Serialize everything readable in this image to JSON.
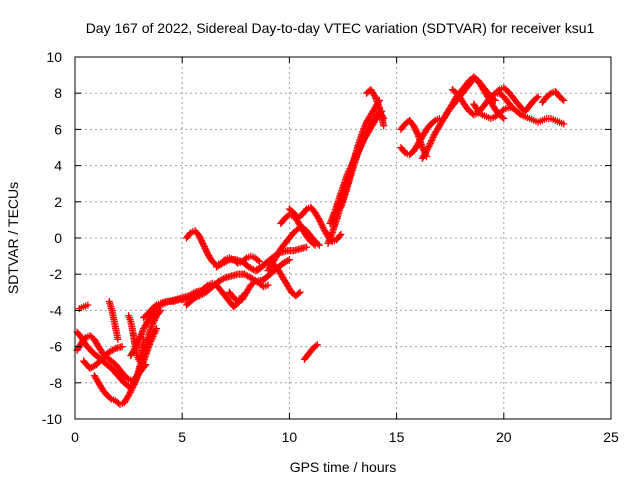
{
  "chart_data": {
    "type": "scatter",
    "title": "Day 167 of 2022, Sidereal Day-to-day VTEC variation (SDTVAR) for receiver ksu1",
    "xlabel": "GPS time / hours",
    "ylabel": "SDTVAR / TECUs",
    "xlim": [
      0,
      25
    ],
    "ylim": [
      -10,
      10
    ],
    "xticks": [
      0,
      5,
      10,
      15,
      20,
      25
    ],
    "yticks": [
      -10,
      -8,
      -6,
      -4,
      -2,
      0,
      2,
      4,
      6,
      8,
      10
    ],
    "grid": true,
    "marker": "+",
    "color": "#ff0000",
    "series": [
      {
        "name": "s1",
        "x": [
          0.2,
          0.4,
          0.6
        ],
        "y": [
          -3.9,
          -3.8,
          -3.7
        ]
      },
      {
        "name": "s2",
        "x": [
          0.1,
          0.3,
          0.5,
          0.7,
          0.9,
          1.1,
          1.3,
          1.5,
          1.7,
          1.9,
          2.1,
          2.3,
          2.5,
          2.7,
          2.9,
          3.1,
          3.3
        ],
        "y": [
          -6.2,
          -5.8,
          -5.5,
          -5.4,
          -5.6,
          -6.0,
          -6.4,
          -6.6,
          -6.8,
          -7.0,
          -7.3,
          -7.6,
          -7.8,
          -7.9,
          -7.6,
          -7.3,
          -7.0
        ]
      },
      {
        "name": "s3",
        "x": [
          0.1,
          0.3,
          0.5,
          0.8,
          1.1,
          1.4,
          1.7,
          2.0,
          2.3,
          2.6,
          2.9,
          3.2,
          3.5,
          3.8
        ],
        "y": [
          -5.2,
          -5.5,
          -5.9,
          -6.3,
          -6.6,
          -6.9,
          -7.2,
          -7.6,
          -8.0,
          -8.3,
          -7.7,
          -6.8,
          -5.8,
          -5.0
        ]
      },
      {
        "name": "s4",
        "x": [
          0.9,
          1.1,
          1.3,
          1.5,
          1.7,
          1.9,
          2.1,
          2.3,
          2.5,
          2.8,
          3.0,
          3.2,
          3.4,
          3.6,
          3.8,
          4.0
        ],
        "y": [
          -7.6,
          -8.0,
          -8.4,
          -8.7,
          -8.9,
          -9.0,
          -9.2,
          -9.1,
          -8.7,
          -8.0,
          -7.2,
          -6.3,
          -5.5,
          -4.8,
          -4.3,
          -4.0
        ]
      },
      {
        "name": "s5",
        "x": [
          0.4,
          0.7,
          1.0,
          1.3,
          1.6,
          1.9,
          2.2
        ],
        "y": [
          -6.8,
          -7.2,
          -7.0,
          -6.6,
          -6.3,
          -6.1,
          -6.0
        ]
      },
      {
        "name": "s6",
        "x": [
          2.6,
          2.8,
          3.0,
          3.2,
          3.4,
          3.6,
          3.8,
          4.0,
          4.2,
          4.4,
          4.7,
          5.0,
          5.3,
          5.6,
          5.9,
          6.2
        ],
        "y": [
          -6.5,
          -6.1,
          -5.6,
          -5.0,
          -4.6,
          -4.2,
          -3.9,
          -3.7,
          -3.6,
          -3.5,
          -3.4,
          -3.3,
          -3.2,
          -3.0,
          -2.9,
          -2.8
        ]
      },
      {
        "name": "s7",
        "x": [
          2.5,
          2.6,
          2.7,
          2.8,
          2.9,
          3.0,
          3.1,
          3.2
        ],
        "y": [
          -4.3,
          -4.6,
          -5.2,
          -5.9,
          -6.5,
          -6.8,
          -6.4,
          -5.6
        ]
      },
      {
        "name": "s8",
        "x": [
          1.6,
          1.7,
          1.8,
          1.9,
          2.0
        ],
        "y": [
          -3.5,
          -3.9,
          -4.4,
          -5.0,
          -5.6
        ]
      },
      {
        "name": "s9",
        "x": [
          3.2,
          3.4,
          3.6,
          3.8,
          4.0,
          4.3,
          4.6,
          4.9,
          5.2,
          5.5,
          5.8,
          6.1,
          6.4,
          6.7,
          7.0,
          7.3,
          7.6,
          7.9,
          8.2,
          8.5,
          8.8,
          9.1,
          9.4,
          9.7,
          10.0
        ],
        "y": [
          -4.4,
          -4.2,
          -3.9,
          -3.7,
          -3.6,
          -3.5,
          -3.5,
          -3.4,
          -3.4,
          -3.3,
          -3.2,
          -3.0,
          -2.7,
          -2.4,
          -2.2,
          -2.1,
          -2.0,
          -2.0,
          -2.2,
          -2.4,
          -2.3,
          -2.0,
          -1.7,
          -1.4,
          -1.2
        ]
      },
      {
        "name": "s10",
        "x": [
          5.2,
          5.4,
          5.6,
          5.8,
          6.0,
          6.2,
          6.4,
          6.6,
          6.8,
          7.0,
          7.2,
          7.4,
          7.6,
          7.8
        ],
        "y": [
          -3.7,
          -3.5,
          -3.3,
          -3.1,
          -2.8,
          -2.6,
          -2.5,
          -2.6,
          -2.9,
          -3.2,
          -3.5,
          -3.8,
          -3.6,
          -3.2
        ]
      },
      {
        "name": "s11",
        "x": [
          5.2,
          5.4,
          5.6,
          5.8,
          6.0,
          6.2,
          6.4,
          6.6,
          6.8,
          7.0,
          7.2,
          7.4,
          7.6,
          7.8,
          8.0,
          8.2,
          8.4,
          8.6
        ],
        "y": [
          0.0,
          0.3,
          0.4,
          0.1,
          -0.4,
          -0.9,
          -1.3,
          -1.5,
          -1.4,
          -1.2,
          -1.1,
          -1.2,
          -1.4,
          -1.3,
          -1.1,
          -1.0,
          -1.1,
          -1.3
        ]
      },
      {
        "name": "s12",
        "x": [
          6.6,
          6.9,
          7.2,
          7.5,
          7.8,
          8.1,
          8.4,
          8.7,
          9.0,
          9.3,
          9.6,
          9.9,
          10.2,
          10.5,
          10.8
        ],
        "y": [
          -1.6,
          -1.4,
          -1.2,
          -1.2,
          -1.3,
          -1.6,
          -1.8,
          -1.6,
          -1.3,
          -1.0,
          -0.8,
          -0.7,
          -0.7,
          -0.6,
          -0.5
        ]
      },
      {
        "name": "s13",
        "x": [
          7.2,
          7.4,
          7.6,
          7.8,
          8.0,
          8.2,
          8.4,
          8.6,
          8.8,
          9.0
        ],
        "y": [
          -3.0,
          -3.3,
          -3.5,
          -3.4,
          -3.0,
          -2.6,
          -2.4,
          -2.5,
          -2.7,
          -2.6
        ]
      },
      {
        "name": "s14",
        "x": [
          8.5,
          8.7,
          8.9,
          9.1,
          9.3,
          9.5,
          9.7,
          9.9,
          10.1,
          10.3,
          10.5
        ],
        "y": [
          -1.8,
          -1.6,
          -1.4,
          -1.3,
          -1.5,
          -1.8,
          -2.2,
          -2.6,
          -3.0,
          -3.2,
          -3.0
        ]
      },
      {
        "name": "s15",
        "x": [
          9.0,
          9.2,
          9.4,
          9.6,
          9.8,
          10.0,
          10.2,
          10.4,
          10.6,
          10.8,
          11.0,
          11.2,
          11.4
        ],
        "y": [
          -1.8,
          -1.4,
          -1.0,
          -0.6,
          -0.3,
          0.0,
          0.3,
          0.5,
          0.6,
          0.4,
          0.1,
          -0.2,
          -0.4
        ]
      },
      {
        "name": "s16",
        "x": [
          9.6,
          9.8,
          10.0,
          10.2,
          10.4,
          10.6,
          10.8,
          11.0,
          11.2
        ],
        "y": [
          0.8,
          1.1,
          1.3,
          1.2,
          0.9,
          0.5,
          0.1,
          -0.2,
          -0.4
        ]
      },
      {
        "name": "s17",
        "x": [
          10.0,
          10.2,
          10.4,
          10.6,
          10.8,
          11.0,
          11.2,
          11.4,
          11.6,
          11.8,
          12.0,
          12.2,
          12.4
        ],
        "y": [
          1.6,
          1.4,
          1.1,
          1.3,
          1.6,
          1.7,
          1.4,
          1.0,
          0.5,
          0.1,
          -0.2,
          -0.1,
          0.2
        ]
      },
      {
        "name": "s18",
        "x": [
          10.7,
          10.9,
          11.1,
          11.3
        ],
        "y": [
          -6.7,
          -6.4,
          -6.1,
          -5.9
        ]
      },
      {
        "name": "s19",
        "x": [
          11.8,
          12.0,
          12.2,
          12.4,
          12.6,
          12.8,
          13.0,
          13.2,
          13.4,
          13.6,
          13.8,
          14.0,
          14.2
        ],
        "y": [
          -0.3,
          0.3,
          1.0,
          1.8,
          2.6,
          3.4,
          4.3,
          5.1,
          5.8,
          6.4,
          6.8,
          7.2,
          7.6
        ]
      },
      {
        "name": "s20",
        "x": [
          11.9,
          12.1,
          12.3,
          12.5,
          12.7,
          12.9,
          13.1,
          13.3,
          13.5,
          13.7,
          13.9,
          14.1,
          14.3
        ],
        "y": [
          0.8,
          1.4,
          2.1,
          2.8,
          3.5,
          4.0,
          4.5,
          5.0,
          5.5,
          5.9,
          6.3,
          6.7,
          7.0
        ]
      },
      {
        "name": "s21",
        "x": [
          12.4,
          12.6,
          12.8,
          13.0,
          13.2,
          13.4,
          13.6,
          13.8,
          14.0,
          14.2,
          14.4
        ],
        "y": [
          1.7,
          2.4,
          3.2,
          4.0,
          4.7,
          5.3,
          5.8,
          6.2,
          6.6,
          7.0,
          6.6
        ]
      },
      {
        "name": "s22",
        "x": [
          13.6,
          13.8,
          14.0,
          14.2,
          14.4
        ],
        "y": [
          8.0,
          8.2,
          7.8,
          7.2,
          6.2
        ]
      },
      {
        "name": "s23",
        "x": [
          15.2,
          15.4,
          15.6,
          15.8,
          16.0,
          16.2,
          16.4
        ],
        "y": [
          6.0,
          6.3,
          6.5,
          6.2,
          5.7,
          5.0,
          4.5
        ]
      },
      {
        "name": "s24",
        "x": [
          15.2,
          15.4,
          15.6,
          15.8,
          16.0,
          16.2,
          16.4,
          16.6,
          16.8,
          17.0
        ],
        "y": [
          5.0,
          4.7,
          4.6,
          4.8,
          5.2,
          5.6,
          6.0,
          6.3,
          6.5,
          6.6
        ]
      },
      {
        "name": "s25",
        "x": [
          16.2,
          16.4,
          16.6,
          16.8,
          17.0,
          17.2,
          17.4,
          17.6,
          17.8,
          18.0,
          18.2,
          18.4,
          18.6,
          18.8,
          19.0,
          19.2,
          19.4,
          19.6
        ],
        "y": [
          4.4,
          4.8,
          5.3,
          5.8,
          6.2,
          6.6,
          7.0,
          7.3,
          7.6,
          7.9,
          8.2,
          8.5,
          8.8,
          8.7,
          8.4,
          8.1,
          7.8,
          7.6
        ]
      },
      {
        "name": "s26",
        "x": [
          17.2,
          17.4,
          17.6,
          17.8,
          18.0,
          18.2,
          18.4,
          18.6,
          18.8,
          19.0,
          19.2,
          19.4,
          19.6,
          19.8,
          20.0
        ],
        "y": [
          6.6,
          7.0,
          7.4,
          7.8,
          8.1,
          8.4,
          8.7,
          8.9,
          8.7,
          8.3,
          7.9,
          7.5,
          7.1,
          6.8,
          6.6
        ]
      },
      {
        "name": "s27",
        "x": [
          17.6,
          17.8,
          18.0,
          18.2,
          18.4,
          18.6,
          18.8,
          19.0,
          19.2,
          19.4,
          19.6,
          19.8,
          20.0,
          20.2,
          20.4
        ],
        "y": [
          8.2,
          8.0,
          7.7,
          7.3,
          7.0,
          6.8,
          6.9,
          7.2,
          7.5,
          7.8,
          8.0,
          8.0,
          7.8,
          7.5,
          7.2
        ]
      },
      {
        "name": "s28",
        "x": [
          18.6,
          18.8,
          19.0,
          19.2,
          19.4,
          19.6,
          19.8,
          20.0,
          20.2,
          20.4,
          20.6,
          20.8,
          21.0,
          21.2,
          21.4,
          21.6,
          21.8,
          22.0,
          22.2,
          22.4,
          22.6,
          22.8
        ],
        "y": [
          7.4,
          7.0,
          6.8,
          6.7,
          6.6,
          6.7,
          6.9,
          7.1,
          7.2,
          7.2,
          7.0,
          6.8,
          6.7,
          6.6,
          6.5,
          6.4,
          6.5,
          6.6,
          6.6,
          6.5,
          6.4,
          6.3
        ]
      },
      {
        "name": "s29",
        "x": [
          19.6,
          19.8,
          20.0,
          20.2,
          20.4,
          20.6,
          20.8,
          21.0,
          21.2,
          21.4,
          21.6
        ],
        "y": [
          8.0,
          8.2,
          8.3,
          8.1,
          7.8,
          7.5,
          7.2,
          7.0,
          7.3,
          7.6,
          7.8
        ]
      },
      {
        "name": "s30",
        "x": [
          21.8,
          22.0,
          22.2,
          22.4,
          22.6,
          22.8
        ],
        "y": [
          7.5,
          7.8,
          8.0,
          8.1,
          7.8,
          7.6
        ]
      }
    ]
  }
}
